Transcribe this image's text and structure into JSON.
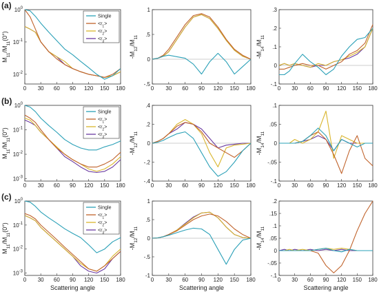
{
  "figure": {
    "x_tick_labels": [
      "0",
      "30",
      "60",
      "90",
      "120",
      "150",
      "180"
    ],
    "log_tick_labels": [
      "10^0",
      "10^-1",
      "10^-2",
      "10^-3"
    ]
  },
  "colors": {
    "single": "#2aa0b7",
    "r1": "#c0622a",
    "r2": "#d9b52c",
    "r3": "#6a3aa0"
  },
  "chart_data": [
    {
      "type": "line",
      "row": "(a)",
      "col": 0,
      "ylabel": "M11/M11(0°)",
      "yscale": "log",
      "ylim": [
        0.005,
        1
      ],
      "ytick_values": [
        1,
        0.1,
        0.01
      ],
      "xlabel": "",
      "xlim": [
        0,
        180
      ],
      "legend": [
        "Single",
        "<r1>",
        "<r2>",
        "<r3>"
      ],
      "legend_position": "top-right",
      "x": [
        0,
        10,
        20,
        30,
        45,
        60,
        75,
        90,
        105,
        120,
        135,
        150,
        165,
        180
      ],
      "series": [
        {
          "name": "Single",
          "values": [
            1,
            0.92,
            0.62,
            0.38,
            0.2,
            0.11,
            0.06,
            0.04,
            0.025,
            0.016,
            0.01,
            0.007,
            0.009,
            0.015
          ]
        },
        {
          "name": "<r1>",
          "values": [
            1,
            0.6,
            0.25,
            0.1,
            0.05,
            0.03,
            0.02,
            0.015,
            0.012,
            0.01,
            0.009,
            0.008,
            0.01,
            0.015
          ]
        },
        {
          "name": "<r2>",
          "values": [
            0.3,
            0.25,
            0.2,
            0.1,
            0.05,
            0.035,
            0.025,
            0.015,
            0.012,
            0.01,
            0.009,
            0.008,
            0.009,
            0.012
          ]
        },
        {
          "name": "<r3>",
          "values": [
            0.3,
            0.25,
            0.2,
            0.1,
            0.05,
            0.035,
            0.02,
            0.015,
            0.012,
            0.01,
            0.009,
            0.008,
            0.009,
            0.012
          ]
        }
      ]
    },
    {
      "type": "line",
      "row": "(a)",
      "col": 1,
      "ylabel": "-M12/M11",
      "yscale": "linear",
      "ylim": [
        -0.5,
        1
      ],
      "ytick_values": [
        -0.5,
        0,
        0.5,
        1
      ],
      "xlabel": "",
      "xlim": [
        0,
        180
      ],
      "x": [
        0,
        10,
        20,
        30,
        45,
        60,
        75,
        90,
        105,
        120,
        135,
        150,
        165,
        180
      ],
      "series": [
        {
          "name": "Single",
          "values": [
            0,
            0.02,
            0.06,
            0.08,
            0.05,
            0.02,
            -0.1,
            -0.3,
            -0.05,
            0.12,
            -0.05,
            -0.3,
            -0.15,
            0
          ]
        },
        {
          "name": "<r1>",
          "values": [
            0,
            0.02,
            0.08,
            0.2,
            0.45,
            0.7,
            0.88,
            0.92,
            0.85,
            0.65,
            0.4,
            0.2,
            0.08,
            0
          ]
        },
        {
          "name": "<r2>",
          "values": [
            0,
            0.02,
            0.06,
            0.15,
            0.4,
            0.65,
            0.85,
            0.9,
            0.82,
            0.62,
            0.38,
            0.18,
            0.06,
            0
          ]
        },
        {
          "name": "<r3>",
          "values": [
            0,
            0.02,
            0.06,
            0.15,
            0.4,
            0.65,
            0.85,
            0.9,
            0.82,
            0.62,
            0.38,
            0.18,
            0.06,
            0
          ]
        }
      ]
    },
    {
      "type": "line",
      "row": "(a)",
      "col": 2,
      "ylabel": "-M14/M11",
      "yscale": "linear",
      "ylim": [
        -0.1,
        0.3
      ],
      "ytick_values": [
        -0.1,
        0,
        0.1,
        0.2,
        0.3
      ],
      "xlabel": "",
      "xlim": [
        0,
        180
      ],
      "x": [
        0,
        10,
        20,
        30,
        45,
        60,
        75,
        90,
        105,
        120,
        135,
        150,
        165,
        180
      ],
      "series": [
        {
          "name": "Single",
          "values": [
            -0.05,
            -0.05,
            -0.03,
            0.01,
            0.06,
            0.02,
            -0.01,
            -0.05,
            -0.02,
            0.05,
            0.1,
            0.14,
            0.15,
            0.2
          ]
        },
        {
          "name": "<r1>",
          "values": [
            -0.02,
            -0.02,
            -0.01,
            0,
            0.01,
            0,
            0,
            -0.02,
            0,
            0.02,
            0.06,
            0.08,
            0.12,
            0.22
          ]
        },
        {
          "name": "<r2>",
          "values": [
            0,
            0.01,
            0,
            0.01,
            0,
            -0.01,
            0.01,
            0,
            0.02,
            0.03,
            0.05,
            0.07,
            0.1,
            0.2
          ]
        },
        {
          "name": "<r3>",
          "values": [
            0,
            0.01,
            0,
            0.01,
            0,
            -0.01,
            0,
            0,
            0.02,
            0.03,
            0.04,
            0.06,
            0.1,
            0.2
          ]
        }
      ]
    },
    {
      "type": "line",
      "row": "(b)",
      "col": 0,
      "ylabel": "M11/M11(0°)",
      "yscale": "log",
      "ylim": [
        0.0008,
        1
      ],
      "ytick_values": [
        1,
        0.1,
        0.01,
        0.001
      ],
      "xlabel": "",
      "xlim": [
        0,
        180
      ],
      "legend": [
        "Single",
        "<r1>",
        "<r2>",
        "<r3>"
      ],
      "legend_position": "top-right",
      "x": [
        0,
        10,
        20,
        30,
        45,
        60,
        75,
        90,
        105,
        120,
        135,
        150,
        165,
        180
      ],
      "series": [
        {
          "name": "Single",
          "values": [
            1,
            0.85,
            0.55,
            0.3,
            0.15,
            0.08,
            0.04,
            0.025,
            0.018,
            0.015,
            0.015,
            0.02,
            0.025,
            0.035
          ]
        },
        {
          "name": "<r1>",
          "values": [
            0.4,
            0.3,
            0.2,
            0.1,
            0.04,
            0.018,
            0.01,
            0.006,
            0.004,
            0.003,
            0.003,
            0.004,
            0.006,
            0.012
          ]
        },
        {
          "name": "<r2>",
          "values": [
            0.3,
            0.25,
            0.15,
            0.08,
            0.04,
            0.02,
            0.01,
            0.006,
            0.004,
            0.0025,
            0.002,
            0.0025,
            0.004,
            0.008
          ]
        },
        {
          "name": "<r3>",
          "values": [
            0.25,
            0.2,
            0.15,
            0.08,
            0.04,
            0.018,
            0.008,
            0.005,
            0.003,
            0.002,
            0.0018,
            0.002,
            0.003,
            0.006
          ]
        }
      ]
    },
    {
      "type": "line",
      "row": "(b)",
      "col": 1,
      "ylabel": "-M12/M11",
      "yscale": "linear",
      "ylim": [
        -0.4,
        0.4
      ],
      "ytick_values": [
        -0.4,
        -0.2,
        0,
        0.2,
        0.4
      ],
      "xlabel": "",
      "xlim": [
        0,
        180
      ],
      "x": [
        0,
        10,
        20,
        30,
        45,
        60,
        75,
        90,
        105,
        120,
        135,
        150,
        165,
        180
      ],
      "series": [
        {
          "name": "Single",
          "values": [
            0,
            0.01,
            0.03,
            0.06,
            0.1,
            0.12,
            0.05,
            -0.1,
            -0.25,
            -0.35,
            -0.3,
            -0.2,
            -0.08,
            0
          ]
        },
        {
          "name": "<r1>",
          "values": [
            0,
            0.02,
            0.05,
            0.1,
            0.18,
            0.22,
            0.2,
            0.12,
            0,
            -0.05,
            -0.1,
            -0.15,
            -0.08,
            0
          ]
        },
        {
          "name": "<r2>",
          "values": [
            0,
            0.02,
            0.05,
            0.1,
            0.2,
            0.25,
            0.2,
            0.1,
            -0.1,
            -0.25,
            -0.05,
            -0.02,
            -0.01,
            0
          ]
        },
        {
          "name": "<r3>",
          "values": [
            0,
            0.02,
            0.05,
            0.1,
            0.15,
            0.22,
            0.2,
            0.15,
            0.05,
            -0.05,
            -0.02,
            -0.01,
            0,
            0
          ]
        }
      ]
    },
    {
      "type": "line",
      "row": "(b)",
      "col": 2,
      "ylabel": "-M14/M11",
      "yscale": "linear",
      "ylim": [
        -0.1,
        0.1
      ],
      "ytick_values": [
        -0.1,
        -0.05,
        0,
        0.05,
        0.1
      ],
      "xlabel": "",
      "xlim": [
        0,
        180
      ],
      "x": [
        0,
        10,
        20,
        30,
        45,
        60,
        75,
        90,
        105,
        120,
        135,
        150,
        165,
        180
      ],
      "series": [
        {
          "name": "Single",
          "values": [
            0,
            0,
            0,
            0,
            0.005,
            0.02,
            0.04,
            0.02,
            -0.02,
            0.01,
            0,
            -0.01,
            0,
            0
          ]
        },
        {
          "name": "<r1>",
          "values": [
            0,
            0,
            0,
            0,
            0.005,
            0.02,
            0.03,
            0.01,
            -0.03,
            -0.08,
            -0.02,
            0.02,
            -0.04,
            -0.06
          ]
        },
        {
          "name": "<r2>",
          "values": [
            0,
            0,
            0,
            0.01,
            0,
            0.01,
            0.03,
            0.085,
            -0.04,
            0.02,
            0.01,
            0,
            0,
            0
          ]
        },
        {
          "name": "<r3>",
          "values": [
            0,
            0,
            0,
            0,
            0.005,
            0.01,
            0.02,
            0.01,
            -0.02,
            0.01,
            0,
            0,
            0,
            0
          ]
        }
      ]
    },
    {
      "type": "line",
      "row": "(c)",
      "col": 0,
      "ylabel": "M11/M11(0°)",
      "yscale": "log",
      "ylim": [
        0.0008,
        1
      ],
      "ytick_values": [
        1,
        0.1,
        0.01,
        0.001
      ],
      "xlabel": "Scattering angle",
      "xlim": [
        0,
        180
      ],
      "legend": [
        "Single",
        "<r1>",
        "<r2>",
        "<r3>"
      ],
      "legend_position": "top-right",
      "x": [
        0,
        10,
        20,
        30,
        45,
        60,
        75,
        90,
        105,
        120,
        135,
        150,
        165,
        180
      ],
      "series": [
        {
          "name": "Single",
          "values": [
            1,
            0.9,
            0.6,
            0.35,
            0.2,
            0.12,
            0.07,
            0.045,
            0.03,
            0.015,
            0.007,
            0.01,
            0.02,
            0.03
          ]
        },
        {
          "name": "<r1>",
          "values": [
            0.3,
            0.25,
            0.18,
            0.1,
            0.05,
            0.025,
            0.012,
            0.006,
            0.003,
            0.0015,
            0.0012,
            0.002,
            0.004,
            0.008
          ]
        },
        {
          "name": "<r2>",
          "values": [
            0.25,
            0.2,
            0.15,
            0.08,
            0.04,
            0.02,
            0.01,
            0.005,
            0.0025,
            0.0015,
            0.0012,
            0.002,
            0.005,
            0.01
          ]
        },
        {
          "name": "<r3>",
          "values": [
            0.25,
            0.2,
            0.15,
            0.08,
            0.04,
            0.02,
            0.01,
            0.005,
            0.002,
            0.0012,
            0.001,
            0.0015,
            0.004,
            0.008
          ]
        }
      ]
    },
    {
      "type": "line",
      "row": "(c)",
      "col": 1,
      "ylabel": "-M12/M11",
      "yscale": "linear",
      "ylim": [
        -1,
        1
      ],
      "ytick_values": [
        -1,
        -0.5,
        0,
        0.5,
        1
      ],
      "xlabel": "Scattering angle",
      "xlim": [
        0,
        180
      ],
      "x": [
        0,
        10,
        20,
        30,
        45,
        60,
        75,
        90,
        105,
        120,
        135,
        150,
        165,
        180
      ],
      "series": [
        {
          "name": "Single",
          "values": [
            0,
            0.01,
            0.04,
            0.08,
            0.15,
            0.22,
            0.27,
            0.25,
            0.1,
            -0.3,
            -0.7,
            -0.3,
            -0.05,
            0
          ]
        },
        {
          "name": "<r1>",
          "values": [
            0,
            0.01,
            0.04,
            0.1,
            0.2,
            0.35,
            0.5,
            0.6,
            0.65,
            0.6,
            0.45,
            0.25,
            0.1,
            0
          ]
        },
        {
          "name": "<r2>",
          "values": [
            0,
            0.01,
            0.04,
            0.1,
            0.22,
            0.38,
            0.55,
            0.68,
            0.7,
            0.55,
            0.3,
            0.1,
            0.02,
            0
          ]
        },
        {
          "name": "<r3>",
          "values": [
            0,
            0.01,
            0.04,
            0.1,
            0.22,
            0.4,
            0.57,
            0.68,
            0.7,
            0.55,
            0.3,
            0.1,
            0.02,
            0
          ]
        }
      ]
    },
    {
      "type": "line",
      "row": "(c)",
      "col": 2,
      "ylabel": "-M14/M11",
      "yscale": "linear",
      "ylim": [
        -0.1,
        0.2
      ],
      "ytick_values": [
        -0.1,
        -0.05,
        0,
        0.05,
        0.1,
        0.15,
        0.2
      ],
      "xlabel": "Scattering angle",
      "xlim": [
        0,
        180
      ],
      "x": [
        0,
        10,
        20,
        30,
        45,
        60,
        75,
        90,
        105,
        120,
        135,
        150,
        165,
        180
      ],
      "series": [
        {
          "name": "Single",
          "values": [
            0,
            0,
            0,
            0,
            0,
            0,
            0.005,
            0.01,
            0,
            -0.005,
            0.005,
            0,
            0,
            0
          ]
        },
        {
          "name": "<r1>",
          "values": [
            0,
            0,
            0,
            0,
            0,
            0,
            -0.01,
            -0.06,
            -0.09,
            -0.06,
            0,
            0.08,
            0.15,
            0.2
          ]
        },
        {
          "name": "<r2>",
          "values": [
            0,
            0,
            0.005,
            0,
            0.005,
            0,
            0.005,
            0.01,
            0.005,
            0.01,
            0.005,
            0,
            0,
            0
          ]
        },
        {
          "name": "<r3>",
          "values": [
            0,
            0.005,
            0,
            0.005,
            0,
            0.005,
            0,
            0.005,
            0,
            0.005,
            0,
            0,
            0,
            0
          ]
        }
      ]
    }
  ]
}
